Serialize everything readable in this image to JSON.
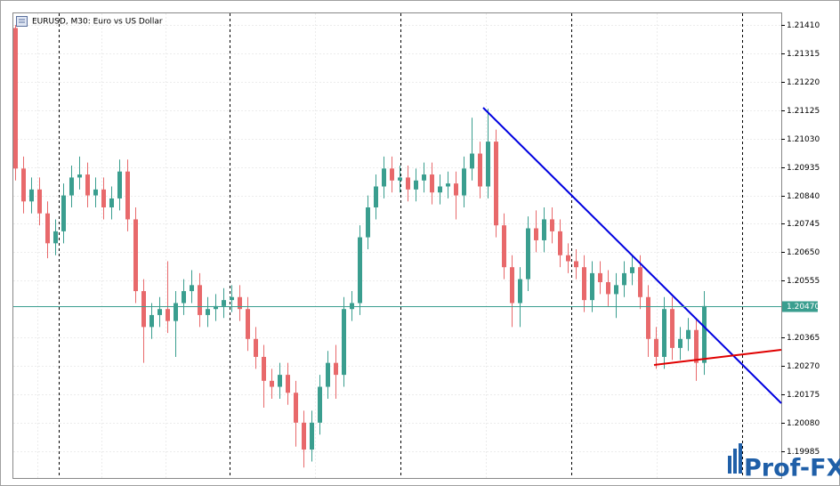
{
  "chart_data": {
    "type": "candlestick",
    "title": "EURUSD, M30:  Euro vs US Dollar",
    "watermark": "Prof-FX",
    "up_color": "#3a9e8f",
    "down_color": "#e8696b",
    "open": [
      1.214,
      1.2093,
      1.2082,
      1.2086,
      1.2078,
      1.2068,
      1.2072,
      1.2084,
      1.209,
      1.2091,
      1.2084,
      1.2086,
      1.208,
      1.2083,
      1.2092,
      1.2076,
      1.2052,
      1.204,
      1.2044,
      1.2046,
      1.2042,
      1.2048,
      1.2052,
      1.2054,
      1.2044,
      1.2046,
      1.2047,
      1.2049,
      1.205,
      1.2046,
      1.2036,
      1.203,
      1.2022,
      1.202,
      1.2024,
      1.2018,
      1.2008,
      1.1999,
      1.2008,
      1.202,
      1.2028,
      1.2024,
      1.2046,
      1.2048,
      1.207,
      1.208,
      1.2087,
      1.2093,
      1.2089,
      1.209,
      1.2086,
      1.2089,
      1.2091,
      1.2085,
      1.2087,
      1.2088,
      1.2084,
      1.2093,
      1.2098,
      1.2087,
      1.2102,
      1.2074,
      1.206,
      1.2048,
      1.2056,
      1.2073,
      1.2069,
      1.2076,
      1.2072,
      1.2064,
      1.2062,
      1.206,
      1.2049,
      1.2058,
      1.2055,
      1.2051,
      1.2054,
      1.2058,
      1.206,
      1.205,
      1.2036,
      1.203,
      1.2046,
      1.2033,
      1.2036,
      1.2039,
      1.2028
    ],
    "high": [
      1.2141,
      1.2097,
      1.209,
      1.209,
      1.2082,
      1.2076,
      1.2088,
      1.2094,
      1.2097,
      1.2095,
      1.209,
      1.209,
      1.2087,
      1.2096,
      1.2096,
      1.208,
      1.2056,
      1.2048,
      1.205,
      1.2062,
      1.2052,
      1.2056,
      1.2059,
      1.2058,
      1.205,
      1.2051,
      1.2053,
      1.2054,
      1.2054,
      1.205,
      1.204,
      1.2034,
      1.2026,
      1.2028,
      1.2028,
      1.2022,
      1.2012,
      1.2012,
      1.2024,
      1.2032,
      1.2034,
      1.205,
      1.2052,
      1.2074,
      1.2084,
      1.2091,
      1.2097,
      1.2097,
      1.2094,
      1.2094,
      1.2093,
      1.2095,
      1.2095,
      1.2091,
      1.2092,
      1.2092,
      1.2097,
      1.211,
      1.2102,
      1.2113,
      1.2106,
      1.2078,
      1.2064,
      1.206,
      1.2077,
      1.2079,
      1.208,
      1.208,
      1.2076,
      1.2068,
      1.2066,
      1.2064,
      1.2062,
      1.2062,
      1.2059,
      1.2058,
      1.2062,
      1.2064,
      1.2064,
      1.2054,
      1.204,
      1.205,
      1.205,
      1.204,
      1.2043,
      1.2043,
      1.2052
    ],
    "low": [
      1.2089,
      1.2078,
      1.2078,
      1.2074,
      1.2063,
      1.2064,
      1.2068,
      1.208,
      1.2086,
      1.208,
      1.208,
      1.2076,
      1.2076,
      1.2079,
      1.2072,
      1.2048,
      1.2028,
      1.2036,
      1.204,
      1.2038,
      1.203,
      1.2044,
      1.2048,
      1.204,
      1.204,
      1.2042,
      1.2043,
      1.2045,
      1.2042,
      1.2032,
      1.2026,
      1.2013,
      1.2016,
      1.2016,
      1.2014,
      1.2,
      1.1993,
      1.1995,
      1.2004,
      1.2016,
      1.2016,
      1.202,
      1.2042,
      1.2044,
      1.2066,
      1.2076,
      1.2083,
      1.2085,
      1.2085,
      1.2082,
      1.2082,
      1.2085,
      1.2081,
      1.2081,
      1.2083,
      1.2076,
      1.208,
      1.2089,
      1.2083,
      1.2083,
      1.207,
      1.2056,
      1.204,
      1.204,
      1.2052,
      1.2065,
      1.2065,
      1.2068,
      1.206,
      1.2058,
      1.2056,
      1.2045,
      1.2045,
      1.2051,
      1.2047,
      1.2043,
      1.205,
      1.2054,
      1.2046,
      1.203,
      1.2026,
      1.2026,
      1.2029,
      1.2029,
      1.2032,
      1.2022,
      1.2024
    ],
    "close": [
      1.2093,
      1.2082,
      1.2086,
      1.2078,
      1.2068,
      1.2072,
      1.2084,
      1.209,
      1.2091,
      1.2084,
      1.2086,
      1.208,
      1.2083,
      1.2092,
      1.2076,
      1.2052,
      1.204,
      1.2044,
      1.2046,
      1.2042,
      1.2048,
      1.2052,
      1.2054,
      1.2044,
      1.2046,
      1.2047,
      1.2049,
      1.205,
      1.2046,
      1.2036,
      1.203,
      1.2022,
      1.202,
      1.2024,
      1.2018,
      1.2008,
      1.1999,
      1.2008,
      1.202,
      1.2028,
      1.2024,
      1.2046,
      1.2048,
      1.207,
      1.208,
      1.2087,
      1.2093,
      1.2089,
      1.209,
      1.2086,
      1.2089,
      1.2091,
      1.2085,
      1.2087,
      1.2088,
      1.2084,
      1.2093,
      1.2098,
      1.2087,
      1.2102,
      1.2074,
      1.206,
      1.2048,
      1.2056,
      1.2073,
      1.2069,
      1.2076,
      1.2072,
      1.2064,
      1.2062,
      1.206,
      1.2049,
      1.2058,
      1.2055,
      1.2051,
      1.2054,
      1.2058,
      1.206,
      1.205,
      1.2036,
      1.203,
      1.2046,
      1.2033,
      1.2036,
      1.2039,
      1.2028,
      1.2047
    ],
    "ylim": [
      1.19895,
      1.21449
    ],
    "yticks": [
      {
        "value": 1.2141,
        "label": "1.21410"
      },
      {
        "value": 1.21315,
        "label": "1.21315"
      },
      {
        "value": 1.2122,
        "label": "1.21220"
      },
      {
        "value": 1.21125,
        "label": "1.21125"
      },
      {
        "value": 1.2103,
        "label": "1.21030"
      },
      {
        "value": 1.20935,
        "label": "1.20935"
      },
      {
        "value": 1.2084,
        "label": "1.20840"
      },
      {
        "value": 1.20745,
        "label": "1.20745"
      },
      {
        "value": 1.2065,
        "label": "1.20650"
      },
      {
        "value": 1.20555,
        "label": "1.20555"
      },
      {
        "value": 1.20365,
        "label": "1.20365"
      },
      {
        "value": 1.2027,
        "label": "1.20270"
      },
      {
        "value": 1.20175,
        "label": "1.20175"
      },
      {
        "value": 1.2008,
        "label": "1.20080"
      },
      {
        "value": 1.19985,
        "label": "1.19985"
      }
    ],
    "current_price": {
      "value": 1.2047,
      "label": "1.20470"
    },
    "grid": true
  }
}
